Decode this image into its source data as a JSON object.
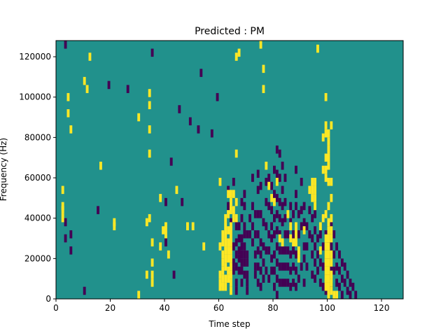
{
  "chart_data": {
    "type": "heatmap",
    "title": "Predicted : PM",
    "xlabel": "Time step",
    "ylabel": "Frequency (Hz)",
    "xlim": [
      0,
      128
    ],
    "ylim": [
      0,
      128000
    ],
    "xticks": [
      0,
      20,
      40,
      60,
      80,
      100,
      120
    ],
    "yticks": [
      0,
      20000,
      40000,
      60000,
      80000,
      100000,
      120000
    ],
    "grid": false,
    "legend": "none",
    "colors": {
      "background": "#21918c",
      "high": "#fde725",
      "low": "#440154"
    },
    "cell_height_hz": 4000,
    "high_cells": [
      [
        2,
        52
      ],
      [
        2,
        44
      ],
      [
        2,
        42
      ],
      [
        2,
        38
      ],
      [
        4,
        98
      ],
      [
        4,
        90
      ],
      [
        5,
        82
      ],
      [
        12,
        118
      ],
      [
        10,
        106
      ],
      [
        11,
        102
      ],
      [
        16,
        64
      ],
      [
        21,
        36
      ],
      [
        21,
        34
      ],
      [
        30,
        88
      ],
      [
        30,
        0
      ],
      [
        33,
        10
      ],
      [
        33,
        36
      ],
      [
        34,
        100
      ],
      [
        34,
        94
      ],
      [
        34,
        82
      ],
      [
        34,
        70
      ],
      [
        34,
        38
      ],
      [
        35,
        26
      ],
      [
        35,
        16
      ],
      [
        35,
        10
      ],
      [
        35,
        6
      ],
      [
        38,
        48
      ],
      [
        38,
        24
      ],
      [
        39,
        32
      ],
      [
        40,
        34
      ],
      [
        40,
        30
      ],
      [
        41,
        20
      ],
      [
        44,
        52
      ],
      [
        48,
        34
      ],
      [
        50,
        34
      ],
      [
        54,
        24
      ],
      [
        60,
        56
      ],
      [
        60,
        24
      ],
      [
        60,
        10
      ],
      [
        60,
        6
      ],
      [
        60,
        4
      ],
      [
        61,
        30
      ],
      [
        61,
        26
      ],
      [
        61,
        20
      ],
      [
        61,
        16
      ],
      [
        61,
        12
      ],
      [
        61,
        8
      ],
      [
        61,
        4
      ],
      [
        62,
        38
      ],
      [
        62,
        34
      ],
      [
        62,
        30
      ],
      [
        62,
        26
      ],
      [
        62,
        22
      ],
      [
        62,
        18
      ],
      [
        62,
        14
      ],
      [
        62,
        8
      ],
      [
        62,
        4
      ],
      [
        63,
        50
      ],
      [
        63,
        40
      ],
      [
        63,
        32
      ],
      [
        63,
        26
      ],
      [
        63,
        22
      ],
      [
        63,
        18
      ],
      [
        63,
        12
      ],
      [
        63,
        8
      ],
      [
        64,
        50
      ],
      [
        64,
        46
      ],
      [
        64,
        42
      ],
      [
        64,
        34
      ],
      [
        64,
        30
      ],
      [
        64,
        26
      ],
      [
        64,
        22
      ],
      [
        64,
        18
      ],
      [
        64,
        14
      ],
      [
        64,
        10
      ],
      [
        64,
        6
      ],
      [
        64,
        2
      ],
      [
        65,
        50
      ],
      [
        65,
        42
      ],
      [
        65,
        38
      ],
      [
        66,
        118
      ],
      [
        66,
        70
      ],
      [
        66,
        46
      ],
      [
        66,
        38
      ],
      [
        67,
        120
      ],
      [
        75,
        124
      ],
      [
        76,
        112
      ],
      [
        76,
        102
      ],
      [
        77,
        64
      ],
      [
        78,
        54
      ],
      [
        79,
        48
      ],
      [
        80,
        46
      ],
      [
        81,
        56
      ],
      [
        82,
        28
      ],
      [
        83,
        26
      ],
      [
        85,
        40
      ],
      [
        86,
        34
      ],
      [
        86,
        28
      ],
      [
        87,
        26
      ],
      [
        88,
        34
      ],
      [
        88,
        30
      ],
      [
        88,
        26
      ],
      [
        89,
        22
      ],
      [
        89,
        18
      ],
      [
        91,
        32
      ],
      [
        93,
        52
      ],
      [
        94,
        56
      ],
      [
        94,
        52
      ],
      [
        94,
        48
      ],
      [
        95,
        56
      ],
      [
        95,
        52
      ],
      [
        95,
        48
      ],
      [
        95,
        44
      ],
      [
        96,
        122
      ],
      [
        97,
        34
      ],
      [
        97,
        22
      ],
      [
        98,
        78
      ],
      [
        98,
        62
      ],
      [
        98,
        38
      ],
      [
        99,
        98
      ],
      [
        99,
        84
      ],
      [
        99,
        80
      ],
      [
        99,
        68
      ],
      [
        99,
        62
      ],
      [
        99,
        58
      ],
      [
        99,
        40
      ],
      [
        99,
        28
      ],
      [
        99,
        24
      ],
      [
        99,
        20
      ],
      [
        99,
        16
      ],
      [
        99,
        12
      ],
      [
        99,
        8
      ],
      [
        99,
        4
      ],
      [
        100,
        80
      ],
      [
        100,
        76
      ],
      [
        100,
        72
      ],
      [
        100,
        68
      ],
      [
        100,
        64
      ],
      [
        100,
        56
      ],
      [
        100,
        44
      ],
      [
        100,
        36
      ],
      [
        100,
        32
      ],
      [
        100,
        28
      ],
      [
        100,
        24
      ],
      [
        100,
        20
      ],
      [
        100,
        16
      ],
      [
        100,
        12
      ],
      [
        100,
        8
      ],
      [
        100,
        4
      ],
      [
        100,
        0
      ],
      [
        101,
        84
      ],
      [
        101,
        56
      ],
      [
        101,
        48
      ],
      [
        101,
        38
      ],
      [
        101,
        32
      ],
      [
        101,
        28
      ],
      [
        101,
        20
      ],
      [
        101,
        16
      ],
      [
        101,
        10
      ],
      [
        101,
        6
      ],
      [
        101,
        2
      ],
      [
        102,
        0
      ],
      [
        103,
        0
      ]
    ],
    "low_cells": [
      [
        3,
        124
      ],
      [
        3,
        36
      ],
      [
        3,
        28
      ],
      [
        5,
        30
      ],
      [
        5,
        22
      ],
      [
        19,
        104
      ],
      [
        15,
        42
      ],
      [
        10,
        2
      ],
      [
        26,
        102
      ],
      [
        35,
        120
      ],
      [
        40,
        46
      ],
      [
        40,
        26
      ],
      [
        42,
        66
      ],
      [
        43,
        10
      ],
      [
        45,
        92
      ],
      [
        46,
        46
      ],
      [
        49,
        86
      ],
      [
        52,
        82
      ],
      [
        53,
        110
      ],
      [
        57,
        80
      ],
      [
        59,
        98
      ],
      [
        63,
        52
      ],
      [
        63,
        44
      ],
      [
        64,
        36
      ],
      [
        64,
        30
      ],
      [
        64,
        24
      ],
      [
        65,
        56
      ],
      [
        65,
        38
      ],
      [
        65,
        24
      ],
      [
        65,
        16
      ],
      [
        65,
        12
      ],
      [
        66,
        34
      ],
      [
        66,
        26
      ],
      [
        66,
        20
      ],
      [
        66,
        14
      ],
      [
        66,
        6
      ],
      [
        66,
        2
      ],
      [
        67,
        34
      ],
      [
        67,
        28
      ],
      [
        67,
        22
      ],
      [
        67,
        18
      ],
      [
        67,
        12
      ],
      [
        68,
        46
      ],
      [
        68,
        38
      ],
      [
        68,
        28
      ],
      [
        68,
        24
      ],
      [
        68,
        20
      ],
      [
        68,
        16
      ],
      [
        68,
        12
      ],
      [
        68,
        6
      ],
      [
        69,
        50
      ],
      [
        69,
        44
      ],
      [
        69,
        34
      ],
      [
        69,
        30
      ],
      [
        69,
        24
      ],
      [
        69,
        20
      ],
      [
        69,
        16
      ],
      [
        69,
        10
      ],
      [
        70,
        30
      ],
      [
        70,
        20
      ],
      [
        70,
        16
      ],
      [
        70,
        10
      ],
      [
        70,
        6
      ],
      [
        70,
        2
      ],
      [
        71,
        38
      ],
      [
        71,
        30
      ],
      [
        72,
        58
      ],
      [
        72,
        44
      ],
      [
        72,
        34
      ],
      [
        72,
        26
      ],
      [
        73,
        40
      ],
      [
        73,
        30
      ],
      [
        73,
        20
      ],
      [
        73,
        14
      ],
      [
        73,
        10
      ],
      [
        74,
        60
      ],
      [
        74,
        52
      ],
      [
        74,
        40
      ],
      [
        74,
        30
      ],
      [
        74,
        22
      ],
      [
        74,
        14
      ],
      [
        74,
        6
      ],
      [
        75,
        54
      ],
      [
        75,
        40
      ],
      [
        75,
        26
      ],
      [
        75,
        20
      ],
      [
        75,
        12
      ],
      [
        75,
        4
      ],
      [
        76,
        36
      ],
      [
        76,
        24
      ],
      [
        76,
        16
      ],
      [
        76,
        8
      ],
      [
        77,
        56
      ],
      [
        77,
        46
      ],
      [
        77,
        34
      ],
      [
        77,
        22
      ],
      [
        77,
        12
      ],
      [
        78,
        58
      ],
      [
        78,
        44
      ],
      [
        78,
        30
      ],
      [
        78,
        22
      ],
      [
        78,
        8
      ],
      [
        79,
        54
      ],
      [
        79,
        42
      ],
      [
        79,
        34
      ],
      [
        79,
        28
      ],
      [
        79,
        18
      ],
      [
        79,
        12
      ],
      [
        80,
        62
      ],
      [
        80,
        50
      ],
      [
        80,
        38
      ],
      [
        80,
        30
      ],
      [
        80,
        20
      ],
      [
        80,
        12
      ],
      [
        80,
        4
      ],
      [
        81,
        72
      ],
      [
        81,
        60
      ],
      [
        81,
        48
      ],
      [
        81,
        40
      ],
      [
        81,
        32
      ],
      [
        81,
        24
      ],
      [
        81,
        16
      ],
      [
        81,
        8
      ],
      [
        81,
        0
      ],
      [
        82,
        70
      ],
      [
        82,
        58
      ],
      [
        82,
        46
      ],
      [
        82,
        38
      ],
      [
        82,
        30
      ],
      [
        82,
        22
      ],
      [
        82,
        14
      ],
      [
        82,
        6
      ],
      [
        83,
        64
      ],
      [
        83,
        52
      ],
      [
        83,
        44
      ],
      [
        83,
        36
      ],
      [
        83,
        22
      ],
      [
        83,
        14
      ],
      [
        83,
        6
      ],
      [
        84,
        58
      ],
      [
        84,
        46
      ],
      [
        84,
        38
      ],
      [
        84,
        30
      ],
      [
        84,
        22
      ],
      [
        84,
        14
      ],
      [
        84,
        6
      ],
      [
        85,
        30
      ],
      [
        85,
        22
      ],
      [
        85,
        14
      ],
      [
        85,
        6
      ],
      [
        86,
        44
      ],
      [
        86,
        36
      ],
      [
        86,
        20
      ],
      [
        86,
        12
      ],
      [
        86,
        4
      ],
      [
        87,
        40
      ],
      [
        87,
        30
      ],
      [
        87,
        22
      ],
      [
        87,
        14
      ],
      [
        87,
        6
      ],
      [
        88,
        62
      ],
      [
        88,
        50
      ],
      [
        88,
        44
      ],
      [
        88,
        20
      ],
      [
        88,
        12
      ],
      [
        88,
        4
      ],
      [
        89,
        40
      ],
      [
        89,
        30
      ],
      [
        89,
        8
      ],
      [
        90,
        56
      ],
      [
        90,
        42
      ],
      [
        90,
        34
      ],
      [
        90,
        14
      ],
      [
        91,
        44
      ],
      [
        91,
        36
      ],
      [
        91,
        24
      ],
      [
        91,
        18
      ],
      [
        91,
        6
      ],
      [
        92,
        34
      ],
      [
        92,
        24
      ],
      [
        92,
        14
      ],
      [
        93,
        42
      ],
      [
        93,
        30
      ],
      [
        94,
        38
      ],
      [
        94,
        28
      ],
      [
        94,
        20
      ],
      [
        94,
        10
      ],
      [
        95,
        40
      ],
      [
        95,
        32
      ],
      [
        95,
        24
      ],
      [
        95,
        16
      ],
      [
        95,
        8
      ],
      [
        96,
        28
      ],
      [
        96,
        20
      ],
      [
        96,
        12
      ],
      [
        97,
        30
      ],
      [
        97,
        16
      ],
      [
        97,
        6
      ],
      [
        98,
        24
      ],
      [
        98,
        14
      ],
      [
        98,
        4
      ],
      [
        99,
        30
      ],
      [
        99,
        20
      ],
      [
        99,
        10
      ],
      [
        99,
        2
      ],
      [
        100,
        26
      ],
      [
        100,
        18
      ],
      [
        100,
        10
      ],
      [
        100,
        2
      ],
      [
        101,
        34
      ],
      [
        101,
        24
      ],
      [
        101,
        14
      ],
      [
        101,
        4
      ],
      [
        102,
        30
      ],
      [
        102,
        20
      ],
      [
        102,
        12
      ],
      [
        103,
        24
      ],
      [
        103,
        14
      ],
      [
        103,
        6
      ],
      [
        104,
        20
      ],
      [
        104,
        12
      ],
      [
        104,
        4
      ],
      [
        105,
        16
      ],
      [
        105,
        8
      ],
      [
        105,
        0
      ],
      [
        106,
        14
      ],
      [
        106,
        6
      ],
      [
        107,
        10
      ],
      [
        107,
        2
      ],
      [
        108,
        6
      ],
      [
        108,
        0
      ],
      [
        109,
        4
      ],
      [
        110,
        0
      ]
    ]
  }
}
